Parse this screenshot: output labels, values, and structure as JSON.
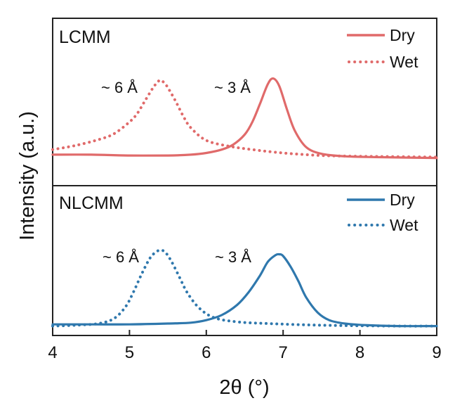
{
  "chart_data": {
    "type": "line",
    "x_axis": {
      "label": "2θ (°)",
      "range": [
        4,
        9
      ],
      "ticks": [
        4,
        5,
        6,
        7,
        8,
        9
      ],
      "tick_labels": [
        "4",
        "5",
        "6",
        "7",
        "8",
        "9"
      ]
    },
    "y_axis": {
      "label": "Intensity (a.u.)"
    },
    "panels": [
      {
        "name": "LCMM",
        "color": "#e06a6a",
        "series": [
          {
            "name": "Dry",
            "style": "solid",
            "x": [
              4.0,
              4.5,
              5.0,
              5.5,
              5.8,
              6.0,
              6.2,
              6.35,
              6.5,
              6.6,
              6.7,
              6.8,
              6.87,
              6.95,
              7.05,
              7.15,
              7.3,
              7.5,
              7.8,
              8.2,
              9.0
            ],
            "y": [
              0.06,
              0.06,
              0.05,
              0.05,
              0.06,
              0.08,
              0.12,
              0.18,
              0.3,
              0.45,
              0.67,
              0.9,
              0.97,
              0.88,
              0.6,
              0.35,
              0.15,
              0.07,
              0.04,
              0.03,
              0.02
            ]
          },
          {
            "name": "Wet",
            "style": "dotted",
            "x": [
              4.0,
              4.3,
              4.6,
              4.8,
              5.0,
              5.1,
              5.2,
              5.3,
              5.35,
              5.4,
              5.45,
              5.5,
              5.6,
              5.7,
              5.8,
              6.0,
              6.3,
              6.6,
              7.0,
              7.5,
              8.0,
              9.0
            ],
            "y": [
              0.12,
              0.17,
              0.24,
              0.31,
              0.45,
              0.55,
              0.7,
              0.85,
              0.91,
              0.95,
              0.92,
              0.86,
              0.7,
              0.52,
              0.38,
              0.23,
              0.16,
              0.12,
              0.08,
              0.05,
              0.04,
              0.03
            ]
          }
        ],
        "annotations": [
          {
            "text": "~ 6 Å",
            "x": 5.4
          },
          {
            "text": "~ 3 Å",
            "x": 6.85
          }
        ]
      },
      {
        "name": "NLCMM",
        "color": "#2f78ad",
        "series": [
          {
            "name": "Dry",
            "style": "solid",
            "x": [
              4.0,
              4.5,
              5.0,
              5.5,
              5.8,
              6.0,
              6.2,
              6.4,
              6.55,
              6.7,
              6.8,
              6.9,
              6.95,
              7.0,
              7.1,
              7.2,
              7.3,
              7.45,
              7.6,
              7.8,
              8.1,
              8.5,
              9.0
            ],
            "y": [
              0.04,
              0.04,
              0.04,
              0.05,
              0.06,
              0.09,
              0.15,
              0.27,
              0.42,
              0.62,
              0.78,
              0.86,
              0.87,
              0.85,
              0.72,
              0.55,
              0.36,
              0.18,
              0.09,
              0.05,
              0.03,
              0.02,
              0.02
            ]
          },
          {
            "name": "Wet",
            "style": "dotted",
            "x": [
              4.0,
              4.3,
              4.6,
              4.8,
              4.95,
              5.05,
              5.15,
              5.25,
              5.32,
              5.4,
              5.47,
              5.55,
              5.65,
              5.75,
              5.9,
              6.1,
              6.4,
              6.8,
              7.5,
              8.5,
              9.0
            ],
            "y": [
              0.02,
              0.03,
              0.05,
              0.11,
              0.25,
              0.42,
              0.62,
              0.8,
              0.88,
              0.92,
              0.89,
              0.78,
              0.6,
              0.42,
              0.24,
              0.12,
              0.07,
              0.05,
              0.03,
              0.02,
              0.02
            ]
          }
        ],
        "annotations": [
          {
            "text": "~ 6 Å",
            "x": 5.4
          },
          {
            "text": "~ 3 Å",
            "x": 6.95
          }
        ]
      }
    ]
  }
}
